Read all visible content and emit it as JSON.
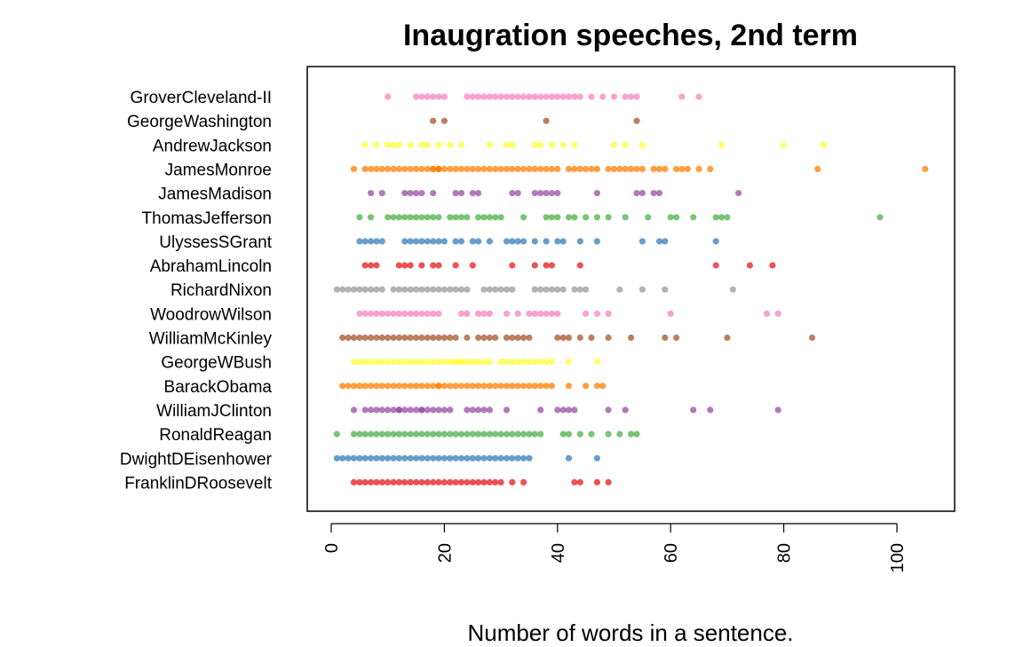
{
  "chart_data": {
    "type": "scatter",
    "title": "Inaugration speeches, 2nd term",
    "xlabel": "Number of words in a sentence.",
    "ylabel": "",
    "xlim": [
      0,
      110
    ],
    "xticks": [
      "0",
      "20",
      "40",
      "60",
      "80",
      "100"
    ],
    "grid": false,
    "legend": "none",
    "series": [
      {
        "name": "GroverCleveland-II",
        "color": "#F781BF",
        "values": [
          10,
          15,
          16,
          17,
          18,
          19,
          20,
          24,
          25,
          26,
          27,
          28,
          29,
          30,
          31,
          32,
          33,
          34,
          35,
          36,
          37,
          38,
          39,
          40,
          41,
          42,
          43,
          44,
          46,
          48,
          50,
          52,
          53,
          54,
          62,
          65
        ]
      },
      {
        "name": "GeorgeWashington",
        "color": "#A65628",
        "values": [
          18,
          20,
          38,
          54
        ]
      },
      {
        "name": "AndrewJackson",
        "color": "#FFFF33",
        "values": [
          6,
          8,
          10,
          11,
          12,
          14,
          16,
          17,
          19,
          21,
          23,
          28,
          31,
          32,
          36,
          37,
          39,
          41,
          43,
          50,
          52,
          55,
          69,
          80,
          87
        ]
      },
      {
        "name": "JamesMonroe",
        "color": "#FF7F00",
        "values": [
          4,
          6,
          7,
          8,
          9,
          10,
          11,
          12,
          13,
          14,
          15,
          16,
          17,
          18,
          18,
          19,
          19,
          19,
          20,
          21,
          22,
          23,
          24,
          25,
          26,
          27,
          28,
          29,
          30,
          31,
          32,
          33,
          34,
          35,
          36,
          37,
          38,
          39,
          40,
          42,
          43,
          44,
          45,
          46,
          47,
          49,
          50,
          51,
          52,
          53,
          54,
          55,
          57,
          58,
          59,
          61,
          62,
          63,
          65,
          67,
          86,
          105
        ]
      },
      {
        "name": "JamesMadison",
        "color": "#984EA3",
        "values": [
          7,
          9,
          13,
          14,
          15,
          16,
          18,
          22,
          23,
          25,
          26,
          32,
          33,
          36,
          37,
          38,
          39,
          40,
          47,
          54,
          55,
          57,
          58,
          72
        ]
      },
      {
        "name": "ThomasJefferson",
        "color": "#4DAF4A",
        "values": [
          5,
          7,
          10,
          11,
          12,
          13,
          14,
          15,
          16,
          17,
          18,
          19,
          21,
          22,
          23,
          24,
          26,
          27,
          28,
          29,
          30,
          34,
          38,
          39,
          40,
          42,
          43,
          45,
          47,
          49,
          52,
          56,
          60,
          61,
          64,
          68,
          69,
          70,
          97
        ]
      },
      {
        "name": "UlyssesSGrant",
        "color": "#377EB8",
        "values": [
          5,
          6,
          7,
          8,
          9,
          13,
          14,
          15,
          16,
          17,
          18,
          19,
          20,
          22,
          23,
          25,
          26,
          28,
          31,
          32,
          33,
          34,
          36,
          38,
          40,
          41,
          44,
          47,
          55,
          58,
          59,
          68
        ]
      },
      {
        "name": "AbrahamLincoln",
        "color": "#E41A1C",
        "values": [
          6,
          7,
          8,
          12,
          13,
          14,
          16,
          18,
          19,
          22,
          25,
          32,
          36,
          38,
          39,
          44,
          68,
          74,
          78
        ]
      },
      {
        "name": "RichardNixon",
        "color": "#999999",
        "values": [
          1,
          2,
          3,
          4,
          5,
          6,
          7,
          8,
          9,
          11,
          12,
          13,
          14,
          15,
          16,
          17,
          18,
          19,
          20,
          21,
          22,
          23,
          24,
          27,
          28,
          29,
          30,
          31,
          32,
          36,
          37,
          38,
          39,
          40,
          41,
          43,
          44,
          45,
          51,
          55,
          59,
          71
        ]
      },
      {
        "name": "WoodrowWilson",
        "color": "#F781BF",
        "values": [
          5,
          6,
          7,
          8,
          9,
          10,
          11,
          12,
          13,
          14,
          15,
          16,
          17,
          18,
          19,
          23,
          24,
          26,
          27,
          28,
          31,
          33,
          35,
          36,
          37,
          38,
          39,
          40,
          45,
          47,
          49,
          60,
          77,
          79
        ]
      },
      {
        "name": "WilliamMcKinley",
        "color": "#A65628",
        "values": [
          2,
          3,
          4,
          5,
          6,
          7,
          8,
          9,
          10,
          11,
          12,
          13,
          14,
          15,
          16,
          17,
          18,
          19,
          20,
          21,
          22,
          24,
          26,
          27,
          28,
          29,
          31,
          32,
          33,
          34,
          35,
          40,
          41,
          42,
          44,
          46,
          49,
          53,
          59,
          61,
          70,
          85
        ]
      },
      {
        "name": "GeorgeWBush",
        "color": "#FFFF33",
        "values": [
          4,
          5,
          6,
          7,
          8,
          9,
          10,
          11,
          12,
          13,
          14,
          15,
          16,
          17,
          18,
          19,
          20,
          21,
          22,
          22,
          23,
          23,
          24,
          25,
          26,
          27,
          28,
          30,
          31,
          32,
          33,
          34,
          35,
          36,
          37,
          38,
          39,
          42,
          47
        ]
      },
      {
        "name": "BarackObama",
        "color": "#FF7F00",
        "values": [
          2,
          3,
          4,
          5,
          6,
          7,
          8,
          9,
          10,
          11,
          12,
          13,
          14,
          15,
          16,
          17,
          18,
          19,
          19,
          20,
          21,
          22,
          23,
          24,
          25,
          26,
          27,
          28,
          29,
          30,
          31,
          32,
          33,
          34,
          35,
          36,
          37,
          38,
          39,
          42,
          45,
          47,
          48
        ]
      },
      {
        "name": "WilliamJClinton",
        "color": "#984EA3",
        "values": [
          4,
          6,
          7,
          8,
          9,
          10,
          11,
          12,
          12,
          13,
          14,
          15,
          16,
          16,
          17,
          18,
          19,
          20,
          21,
          24,
          25,
          26,
          27,
          28,
          31,
          37,
          40,
          41,
          42,
          43,
          49,
          52,
          64,
          67,
          79
        ]
      },
      {
        "name": "RonaldReagan",
        "color": "#4DAF4A",
        "values": [
          1,
          4,
          5,
          6,
          7,
          8,
          9,
          10,
          11,
          12,
          13,
          14,
          15,
          16,
          17,
          18,
          19,
          20,
          21,
          22,
          23,
          24,
          25,
          26,
          27,
          28,
          29,
          30,
          31,
          32,
          33,
          34,
          35,
          36,
          37,
          41,
          42,
          44,
          46,
          49,
          51,
          53,
          54
        ]
      },
      {
        "name": "DwightDEisenhower",
        "color": "#377EB8",
        "values": [
          1,
          2,
          3,
          4,
          5,
          6,
          7,
          8,
          9,
          10,
          11,
          12,
          13,
          14,
          15,
          16,
          17,
          18,
          19,
          20,
          21,
          22,
          23,
          24,
          25,
          26,
          27,
          28,
          29,
          30,
          31,
          32,
          33,
          34,
          35,
          42,
          47
        ]
      },
      {
        "name": "FranklinDRoosevelt",
        "color": "#E41A1C",
        "values": [
          4,
          5,
          6,
          7,
          8,
          9,
          10,
          11,
          12,
          13,
          14,
          15,
          16,
          17,
          18,
          19,
          20,
          21,
          22,
          23,
          24,
          25,
          26,
          27,
          28,
          29,
          30,
          32,
          34,
          43,
          44,
          47,
          49
        ]
      }
    ]
  }
}
